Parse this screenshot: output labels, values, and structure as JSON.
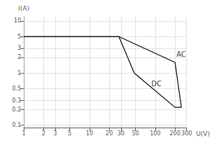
{
  "chart_data": {
    "type": "line",
    "xlabel": "U(V)",
    "ylabel": "I(A)",
    "log": true,
    "grid": true,
    "xlim": [
      1,
      300
    ],
    "ylim": [
      0.09,
      12
    ],
    "xticks": [
      1,
      2,
      3,
      5,
      10,
      20,
      30,
      50,
      100,
      200,
      300
    ],
    "yticks": [
      0.1,
      0.2,
      0.3,
      0.5,
      1,
      2,
      3,
      5,
      10
    ],
    "series": [
      {
        "x": [
          1,
          28,
          200,
          200,
          250
        ],
        "values": [
          5,
          5,
          1.6,
          1.6,
          0.22
        ],
        "color": "#000000"
      },
      {
        "x": [
          1,
          28,
          48,
          200,
          250
        ],
        "values": [
          5,
          5,
          1.0,
          0.22,
          0.22
        ],
        "color": "#000000"
      }
    ],
    "annotations": [
      {
        "text": "AC",
        "x": 205,
        "y": 2.3,
        "color": "#000000"
      },
      {
        "text": "DC",
        "x": 85,
        "y": 0.62,
        "color": "#000000"
      }
    ]
  }
}
